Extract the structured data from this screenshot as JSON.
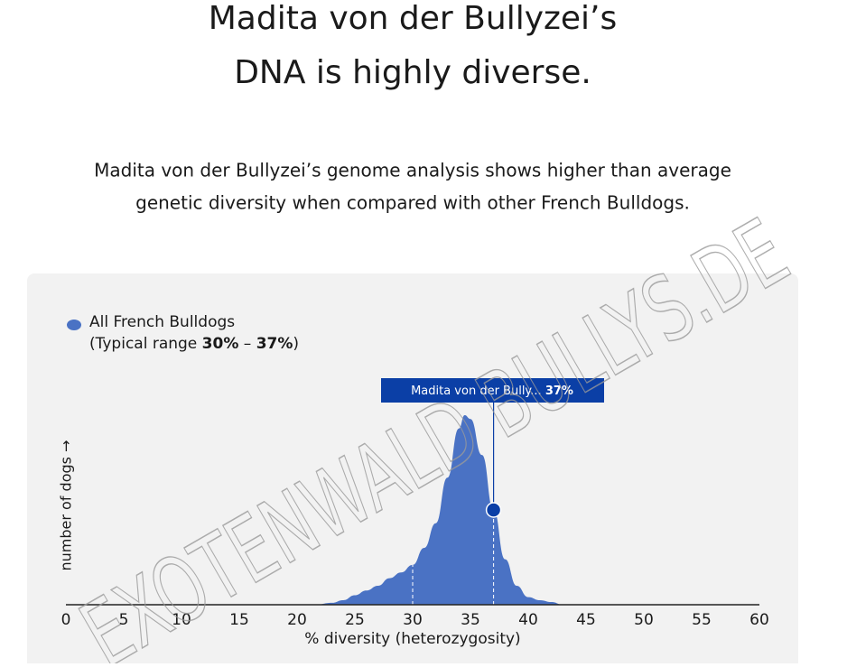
{
  "header": {
    "title_lines": [
      "Madita von der Bullyzei’s",
      "DNA is highly diverse."
    ],
    "description_lines": [
      "Madita von der Bullyzei’s genome analysis shows higher than average",
      "genetic diversity when compared with other French Bulldogs."
    ]
  },
  "chart_data": {
    "type": "area",
    "xlabel": "% diversity (heterozygosity)",
    "ylabel": "number of dogs →",
    "x": [
      21.6,
      23,
      24,
      25,
      26,
      27,
      28,
      29,
      30,
      31,
      32,
      33,
      34,
      34.5,
      35,
      36,
      37,
      38,
      39,
      40,
      41,
      42,
      43
    ],
    "series": [
      {
        "name": "All French Bulldogs",
        "color": "#4a72c4",
        "values": [
          0,
          1,
          2.4,
          5,
          7.5,
          10,
          14,
          17,
          21,
          30,
          43,
          67,
          93,
          100,
          98,
          79,
          50,
          24,
          10,
          4,
          2.4,
          1.4,
          0
        ]
      }
    ],
    "legend_note": {
      "prefix": "(Typical range",
      "sep": "–",
      "suffix": ")"
    },
    "typical_range": [
      {
        "value": 30,
        "label": "30%"
      },
      {
        "value": 37,
        "label": "37%"
      }
    ],
    "marker": {
      "label": "Madita von der Bully...",
      "value": {
        "value": 37,
        "label": "37%"
      },
      "color": "#0b3fa6"
    },
    "xlim": [
      0,
      60
    ],
    "xticks": [
      0,
      5,
      10,
      15,
      20,
      25,
      30,
      35,
      40,
      45,
      50,
      55,
      60
    ],
    "ylim": [
      0,
      100
    ]
  },
  "watermark": "EXOTENWALD BULLYS.DE"
}
